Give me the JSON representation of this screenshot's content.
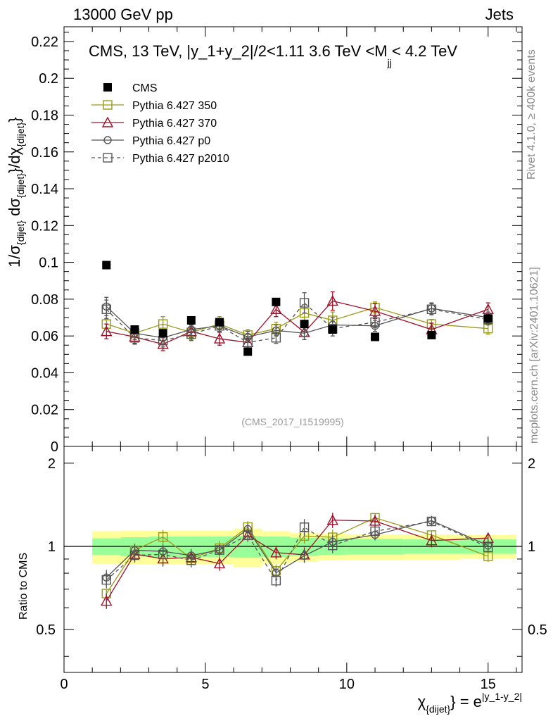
{
  "header": {
    "left": "13000 GeV pp",
    "right": "Jets"
  },
  "side_labels": {
    "rivet": "Rivet 4.1.0, ≥ 400k events",
    "mcplots": "mcplots.cern.ch [arXiv:2401.10621]"
  },
  "chart_data": {
    "type": "scatter",
    "title": "CMS, 13 TeV, |y_1+y_2|/2<1.11 3.6 TeV <M_jj< 4.2 TeV",
    "title_parts": {
      "main": "CMS, 13 TeV, |y_1+y_2|/2<1.11 3.6 TeV <M",
      "sub": "jj",
      "tail": "< 4.2 TeV"
    },
    "analysis_id": "(CMS_2017_I1519995)",
    "ylabel": "1/σ_{dijet} dσ_{dijet}/dχ_{dijet}",
    "ylabel_parts": {
      "a": "1/σ",
      "b": "{dijet}",
      "c": " dσ",
      "d": "{dijet}",
      "e": "}/dχ",
      "f": "{dijet}",
      "g": "}"
    },
    "xlabel": "χ_{dijet} = e^{|y_1-y_2|}",
    "xlabel_parts": {
      "a": "χ",
      "b": "{dijet}",
      "c": "} = e",
      "d": "|y_1-y_2|"
    },
    "ratio_ylabel": "Ratio to CMS",
    "xlim": [
      0,
      16.2
    ],
    "ylim": [
      0,
      0.228
    ],
    "ratio_ylim": [
      0.35,
      2.3
    ],
    "xticks": [
      0,
      5,
      10,
      15
    ],
    "yticks": [
      0,
      0.02,
      0.04,
      0.06,
      0.08,
      0.1,
      0.12,
      0.14,
      0.16,
      0.18,
      0.2,
      0.22
    ],
    "ratio_yticks": [
      0.5,
      1,
      2
    ],
    "x": [
      1.5,
      2.5,
      3.5,
      4.5,
      5.5,
      6.5,
      7.5,
      8.5,
      9.5,
      11,
      13,
      15
    ],
    "bin_edges": [
      1,
      2,
      3,
      4,
      5,
      6,
      7,
      8,
      9,
      10,
      12,
      14,
      16
    ],
    "data": {
      "name": "CMS",
      "values": [
        0.0985,
        0.0635,
        0.0615,
        0.0685,
        0.0675,
        0.0515,
        0.0785,
        0.0665,
        0.0635,
        0.0595,
        0.0605,
        0.0695
      ],
      "band_inner": [
        0.14,
        0.16,
        0.17,
        0.17,
        0.17,
        0.18,
        0.17,
        0.15,
        0.14,
        0.13,
        0.12,
        0.12
      ],
      "band_outer": [
        0.27,
        0.28,
        0.28,
        0.28,
        0.28,
        0.32,
        0.27,
        0.24,
        0.22,
        0.21,
        0.21,
        0.2
      ],
      "color": "#000000"
    },
    "series": [
      {
        "name": "Pythia 6.427 350",
        "values": [
          0.0665,
          0.0615,
          0.0665,
          0.062,
          0.0665,
          0.0605,
          0.064,
          0.0725,
          0.0685,
          0.0755,
          0.0665,
          0.064
        ],
        "errors": [
          0.0025,
          0.0025,
          0.004,
          0.004,
          0.004,
          0.003,
          0.0035,
          0.0045,
          0.0045,
          0.003,
          0.0025,
          0.003
        ],
        "color": "#9a9a1a",
        "marker": "square",
        "dash": false
      },
      {
        "name": "Pythia 6.427 370",
        "values": [
          0.0625,
          0.0595,
          0.0555,
          0.0625,
          0.0585,
          0.0565,
          0.0745,
          0.062,
          0.079,
          0.0735,
          0.0635,
          0.0745
        ],
        "errors": [
          0.004,
          0.0035,
          0.0035,
          0.0035,
          0.0035,
          0.003,
          0.004,
          0.004,
          0.005,
          0.004,
          0.0035,
          0.0035
        ],
        "color": "#a0102a",
        "marker": "triangle",
        "dash": false
      },
      {
        "name": "Pythia 6.427 p0",
        "values": [
          0.076,
          0.0615,
          0.059,
          0.0635,
          0.0655,
          0.0595,
          0.063,
          0.0615,
          0.066,
          0.0655,
          0.075,
          0.07
        ],
        "errors": [
          0.005,
          0.0035,
          0.0035,
          0.0035,
          0.003,
          0.003,
          0.003,
          0.0035,
          0.004,
          0.003,
          0.003,
          0.003
        ],
        "color": "#555555",
        "marker": "circle",
        "dash": false
      },
      {
        "name": "Pythia 6.427 p2010",
        "values": [
          0.0745,
          0.059,
          0.0575,
          0.061,
          0.0655,
          0.0565,
          0.059,
          0.078,
          0.064,
          0.0675,
          0.0745,
          0.069
        ],
        "errors": [
          0.005,
          0.0035,
          0.0035,
          0.0035,
          0.003,
          0.003,
          0.003,
          0.0055,
          0.004,
          0.003,
          0.003,
          0.003
        ],
        "color": "#555555",
        "marker": "square",
        "dash": true
      }
    ],
    "legend_position": "top-left",
    "grid": false
  }
}
